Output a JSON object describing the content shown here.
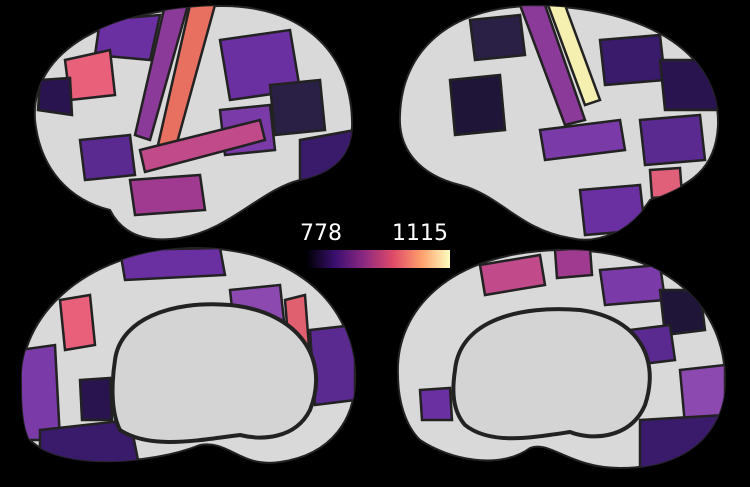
{
  "colorbar": {
    "min": 778,
    "max": 1115
  }
}
